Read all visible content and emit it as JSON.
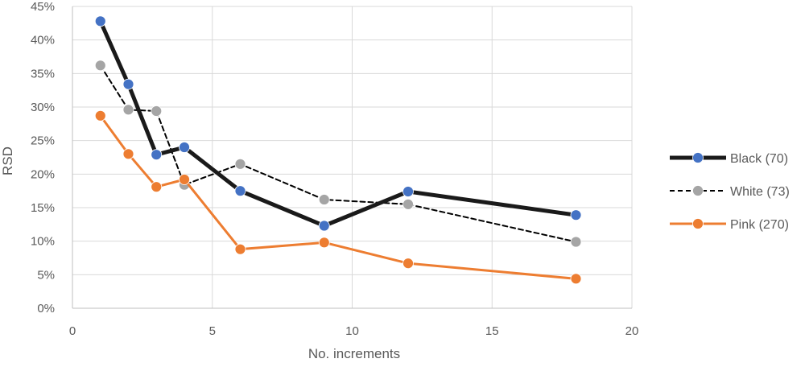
{
  "chart_data": {
    "type": "line",
    "title": "",
    "xlabel": "No. increments",
    "ylabel": "RSD",
    "xlim": [
      0,
      20
    ],
    "ylim": [
      0,
      45
    ],
    "x_ticks": [
      "0",
      "5",
      "10",
      "15",
      "20"
    ],
    "y_ticks": [
      "0%",
      "5%",
      "10%",
      "15%",
      "20%",
      "25%",
      "30%",
      "35%",
      "40%",
      "45%"
    ],
    "grid": true,
    "legend_position": "right",
    "series": [
      {
        "name": "Black (70)",
        "line_color": "#1a1a1a",
        "marker_color": "#4472c4",
        "line_style": "solid-thick",
        "x": [
          1,
          2,
          3,
          4,
          6,
          9,
          12,
          18
        ],
        "y": [
          42.8,
          33.4,
          22.9,
          24.0,
          17.5,
          12.3,
          17.4,
          13.9
        ]
      },
      {
        "name": "White (73)",
        "line_color": "#000000",
        "marker_color": "#a5a5a5",
        "line_style": "dashed",
        "x": [
          1,
          2,
          3,
          4,
          6,
          9,
          12,
          18
        ],
        "y": [
          36.2,
          29.6,
          29.4,
          18.4,
          21.5,
          16.2,
          15.5,
          9.9
        ]
      },
      {
        "name": "Pink (270)",
        "line_color": "#ed7d31",
        "marker_color": "#ed7d31",
        "line_style": "solid",
        "x": [
          1,
          2,
          3,
          4,
          6,
          9,
          12,
          18
        ],
        "y": [
          28.7,
          23.0,
          18.1,
          19.2,
          8.8,
          9.8,
          6.7,
          4.4
        ]
      }
    ]
  }
}
